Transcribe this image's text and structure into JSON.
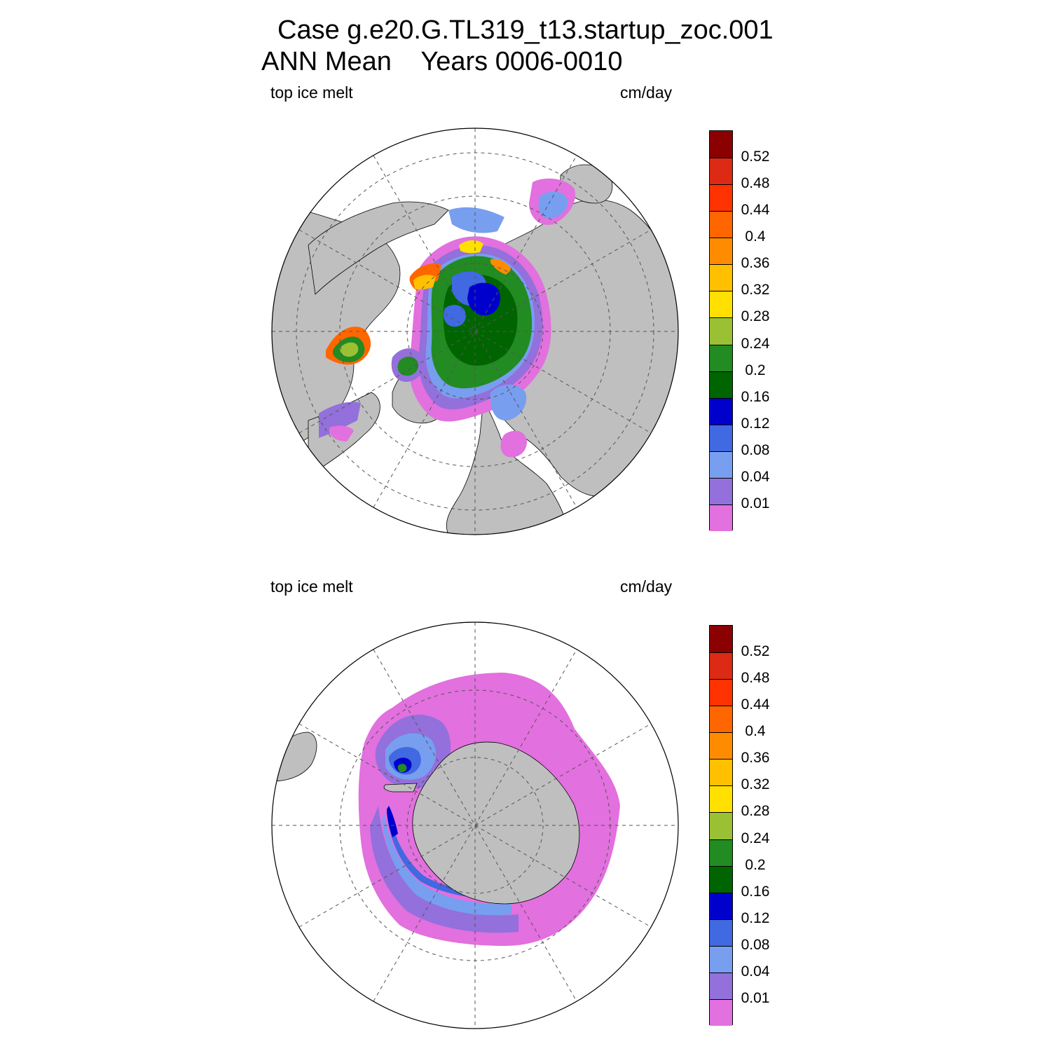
{
  "title": {
    "line1": "Case g.e20.G.TL319_t13.startup_zoc.001",
    "line2": "ANN Mean    Years 0006-0010"
  },
  "colors": {
    "land": "#bfbfbf",
    "ocean": "#ffffff",
    "outline": "#000000",
    "grid": "#555555"
  },
  "colorbar": {
    "labels": [
      "0.52",
      "0.48",
      "0.44",
      "0.4",
      "0.36",
      "0.32",
      "0.28",
      "0.24",
      "0.2",
      "0.16",
      "0.12",
      "0.08",
      "0.04",
      "0.01"
    ],
    "colors_top_to_bottom": [
      "#8b0000",
      "#dc2a14",
      "#ff3300",
      "#ff6600",
      "#ff8c00",
      "#ffc000",
      "#ffe000",
      "#9ac134",
      "#228b22",
      "#006400",
      "#0000cd",
      "#4169e1",
      "#789ef0",
      "#9370db",
      "#e270de"
    ]
  },
  "panels": [
    {
      "id": "north",
      "left_label": "top ice melt",
      "right_label": "cm/day",
      "hemisphere": "Northern Hemisphere polar stereographic"
    },
    {
      "id": "south",
      "left_label": "top ice melt",
      "right_label": "cm/day",
      "hemisphere": "Southern Hemisphere polar stereographic"
    }
  ]
}
